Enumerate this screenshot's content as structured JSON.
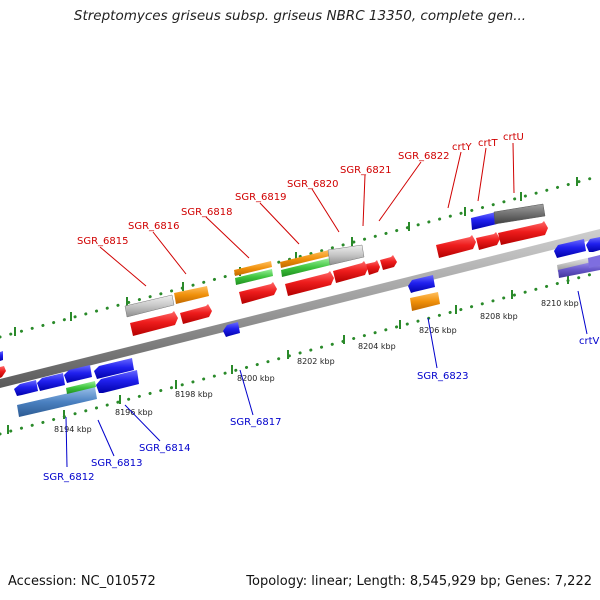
{
  "header": {
    "title": "Streptomyces griseus subsp. griseus NBRC 13350, complete gen..."
  },
  "footer": {
    "accession": "Accession: NC_010572",
    "summary": "Topology: linear; Length: 8,545,929 bp; Genes: 7,222"
  },
  "colors": {
    "forward_gene": "#e81010",
    "reverse_gene": "#1a1aee",
    "pseudo": "#c2c2c2",
    "orange": "#f0900a",
    "green": "#3ec43e",
    "steelblue": "#4a80c0",
    "purple": "#6a5acd",
    "backbone": "#888888",
    "ticks": "#2a8a2a",
    "label_forward": "#d00000",
    "label_reverse": "#0000cc"
  },
  "scale_labels": [
    "8194 kbp",
    "8196 kbp",
    "8198 kbp",
    "8200 kbp",
    "8202 kbp",
    "8204 kbp",
    "8206 kbp",
    "8208 kbp",
    "8210 kbp"
  ],
  "forward_genes": [
    "SGR_6815",
    "SGR_6816",
    "SGR_6818",
    "SGR_6819",
    "SGR_6820",
    "SGR_6821",
    "SGR_6822",
    "crtY",
    "crtT",
    "crtU"
  ],
  "reverse_genes": [
    "SGR_6812",
    "SGR_6813",
    "SGR_6814",
    "SGR_6817",
    "SGR_6823",
    "crtV"
  ]
}
